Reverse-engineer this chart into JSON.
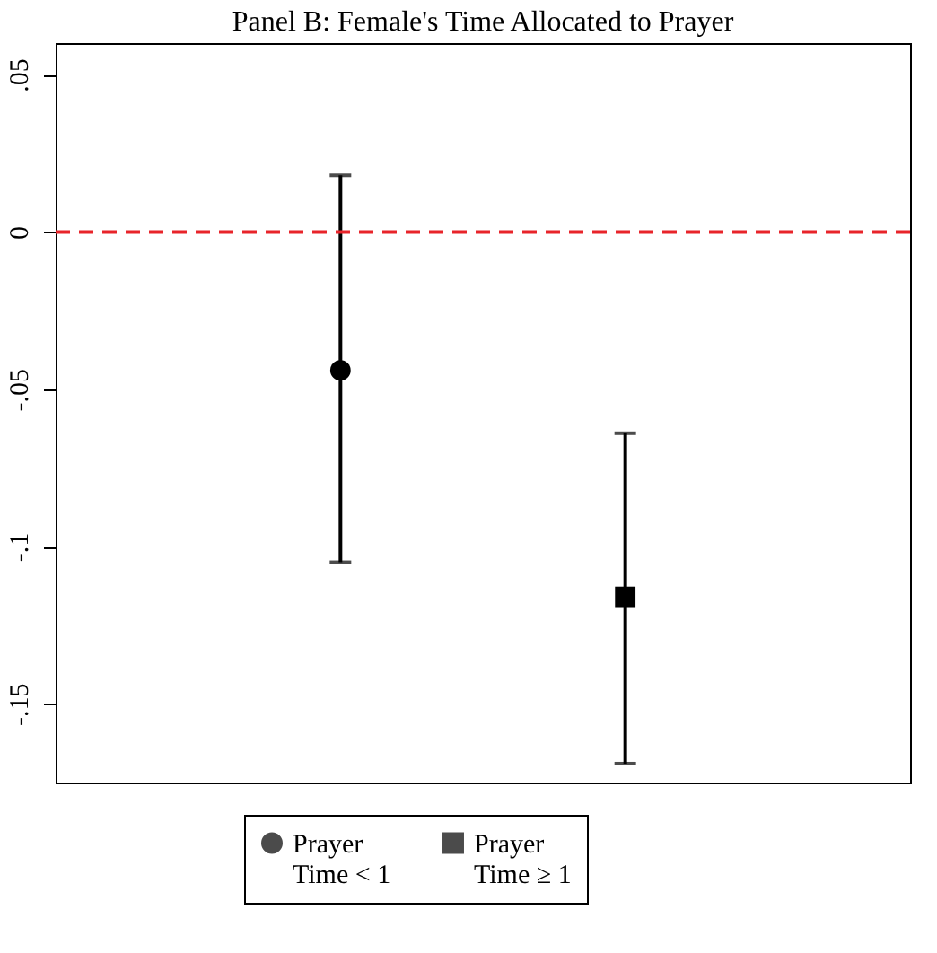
{
  "chart_data": {
    "type": "scatter",
    "title": "Panel B: Female's Time Allocated to Prayer",
    "categories": [
      null,
      null
    ],
    "series": [
      {
        "name": "Prayer Time < 1",
        "color": "#000000",
        "marker": "circle",
        "values": [
          -0.044,
          null
        ],
        "errors": [
          [
            -0.105,
            0.018
          ],
          null
        ]
      },
      {
        "name": "Prayer Time ≥ 1",
        "color": "#000000",
        "marker": "square",
        "values": [
          null,
          -0.116
        ],
        "errors": [
          null,
          [
            -0.169,
            -0.064
          ]
        ]
      }
    ],
    "ylim": [
      -0.175,
      0.06
    ],
    "yticks": [
      {
        "value": 0.05,
        "label": ".05"
      },
      0,
      {
        "value": -0.05,
        "label": "-.05"
      },
      {
        "value": -0.1,
        "label": "-.1"
      },
      {
        "value": -0.15,
        "label": "-.15"
      }
    ],
    "ref_lines": [
      {
        "axis": "y",
        "value": 0,
        "color": "#e8242a",
        "line_style": "dashed"
      }
    ],
    "grid": false,
    "legend": "bottom",
    "tick_labels": "y"
  }
}
